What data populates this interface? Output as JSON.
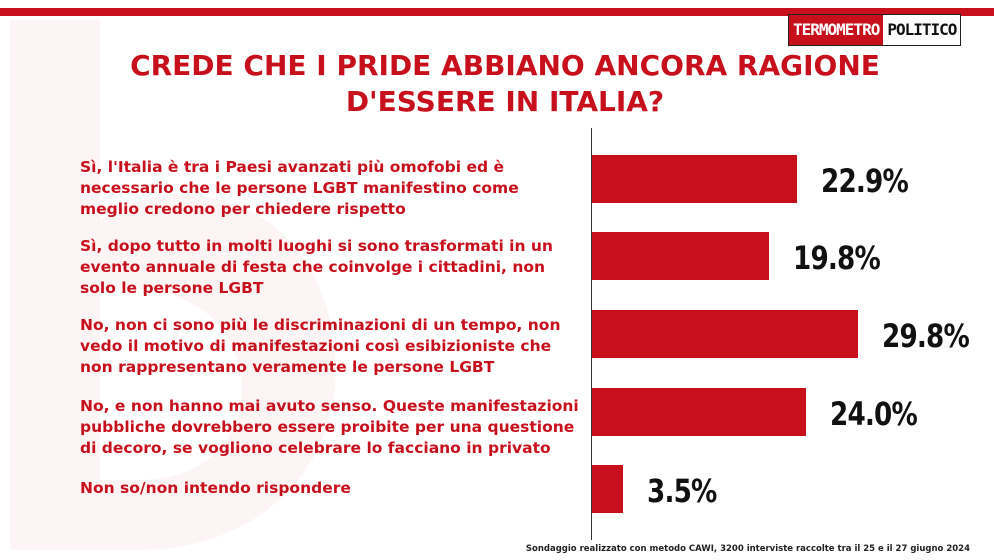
{
  "brand": {
    "logo_part1": "TERMOMETRO",
    "logo_part2": "POLITICO"
  },
  "colors": {
    "accent": "#c8101d",
    "text_dark": "#111111"
  },
  "chart_data": {
    "type": "bar",
    "orientation": "horizontal",
    "title": "CREDE CHE I PRIDE ABBIANO ANCORA RAGIONE D'ESSERE IN ITALIA?",
    "title_lines": [
      "CREDE CHE I PRIDE ABBIANO ANCORA RAGIONE",
      "D'ESSERE IN ITALIA?"
    ],
    "categories": [
      "Sì, l'Italia è tra i Paesi avanzati più omofobi ed è necessario che le persone LGBT manifestino come meglio credono per chiedere rispetto",
      "Sì, dopo tutto in molti luoghi si sono trasformati in un evento annuale di festa che coinvolge i cittadini, non solo le persone LGBT",
      "No, non ci sono più le discriminazioni di un tempo, non vedo il motivo di manifestazioni così esibizioniste che non rappresentano veramente le persone LGBT",
      "No, e non hanno mai avuto senso. Queste manifestazioni pubbliche dovrebbero essere proibite per una questione di decoro, se vogliono celebrare lo facciano in privato",
      "Non so/non intendo rispondere"
    ],
    "values": [
      22.9,
      19.8,
      29.8,
      24.0,
      3.5
    ],
    "value_labels": [
      "22.9%",
      "19.8%",
      "29.8%",
      "24.0%",
      "3.5%"
    ],
    "unit": "%",
    "xlim": [
      0,
      30
    ],
    "grid": false,
    "legend": "none"
  },
  "footnote": "Sondaggio realizzato con metodo CAWI, 3200 interviste raccolte tra il 25 e il 27 giugno 2024"
}
